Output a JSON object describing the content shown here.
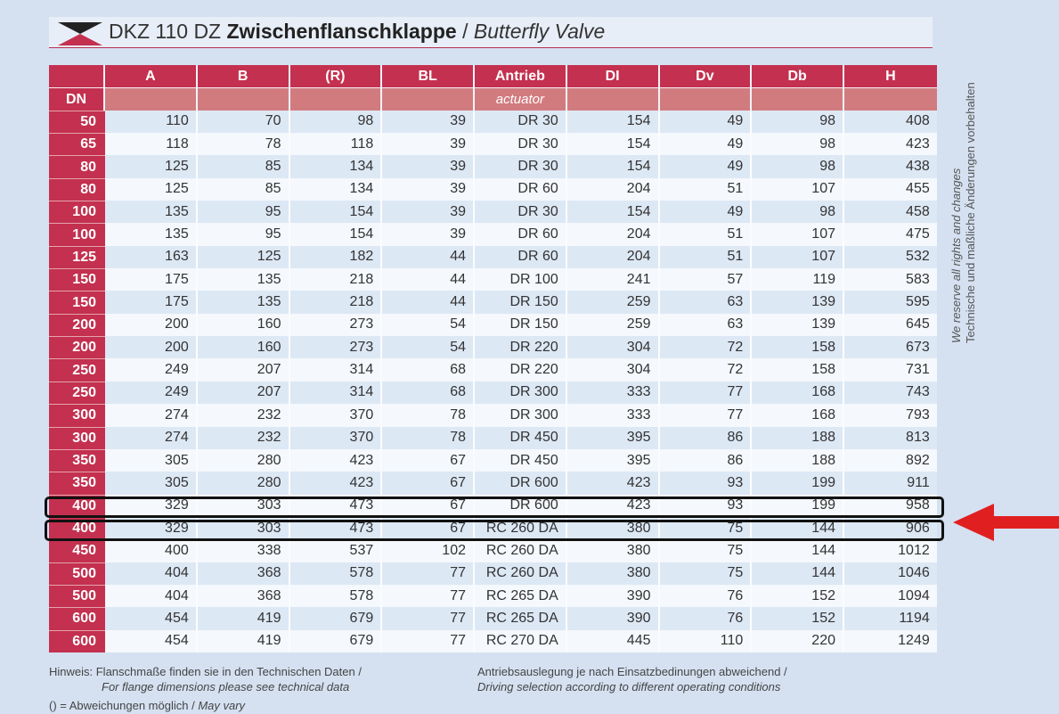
{
  "header": {
    "title_prefix": "DKZ 110 DZ",
    "title_bold": "Zwischenflanschklappe",
    "title_separator": " / ",
    "title_italic": "Butterfly Valve"
  },
  "table": {
    "columns": [
      "A",
      "B",
      "(R)",
      "BL",
      "Antrieb",
      "DI",
      "Dv",
      "Db",
      "H"
    ],
    "dn_label": "DN",
    "antrieb_sublabel": "actuator",
    "rows": [
      {
        "dn": "50",
        "values": [
          "110",
          "70",
          "98",
          "39",
          "DR 30",
          "154",
          "49",
          "98",
          "408"
        ]
      },
      {
        "dn": "65",
        "values": [
          "118",
          "78",
          "118",
          "39",
          "DR 30",
          "154",
          "49",
          "98",
          "423"
        ]
      },
      {
        "dn": "80",
        "values": [
          "125",
          "85",
          "134",
          "39",
          "DR 30",
          "154",
          "49",
          "98",
          "438"
        ]
      },
      {
        "dn": "80",
        "values": [
          "125",
          "85",
          "134",
          "39",
          "DR 60",
          "204",
          "51",
          "107",
          "455"
        ]
      },
      {
        "dn": "100",
        "values": [
          "135",
          "95",
          "154",
          "39",
          "DR 30",
          "154",
          "49",
          "98",
          "458"
        ]
      },
      {
        "dn": "100",
        "values": [
          "135",
          "95",
          "154",
          "39",
          "DR 60",
          "204",
          "51",
          "107",
          "475"
        ]
      },
      {
        "dn": "125",
        "values": [
          "163",
          "125",
          "182",
          "44",
          "DR 60",
          "204",
          "51",
          "107",
          "532"
        ]
      },
      {
        "dn": "150",
        "values": [
          "175",
          "135",
          "218",
          "44",
          "DR 100",
          "241",
          "57",
          "119",
          "583"
        ]
      },
      {
        "dn": "150",
        "values": [
          "175",
          "135",
          "218",
          "44",
          "DR 150",
          "259",
          "63",
          "139",
          "595"
        ]
      },
      {
        "dn": "200",
        "values": [
          "200",
          "160",
          "273",
          "54",
          "DR 150",
          "259",
          "63",
          "139",
          "645"
        ]
      },
      {
        "dn": "200",
        "values": [
          "200",
          "160",
          "273",
          "54",
          "DR 220",
          "304",
          "72",
          "158",
          "673"
        ]
      },
      {
        "dn": "250",
        "values": [
          "249",
          "207",
          "314",
          "68",
          "DR 220",
          "304",
          "72",
          "158",
          "731"
        ]
      },
      {
        "dn": "250",
        "values": [
          "249",
          "207",
          "314",
          "68",
          "DR 300",
          "333",
          "77",
          "168",
          "743"
        ]
      },
      {
        "dn": "300",
        "values": [
          "274",
          "232",
          "370",
          "78",
          "DR 300",
          "333",
          "77",
          "168",
          "793"
        ]
      },
      {
        "dn": "300",
        "values": [
          "274",
          "232",
          "370",
          "78",
          "DR 450",
          "395",
          "86",
          "188",
          "813"
        ]
      },
      {
        "dn": "350",
        "values": [
          "305",
          "280",
          "423",
          "67",
          "DR 450",
          "395",
          "86",
          "188",
          "892"
        ]
      },
      {
        "dn": "350",
        "values": [
          "305",
          "280",
          "423",
          "67",
          "DR 600",
          "423",
          "93",
          "199",
          "911"
        ]
      },
      {
        "dn": "400",
        "values": [
          "329",
          "303",
          "473",
          "67",
          "DR 600",
          "423",
          "93",
          "199",
          "958"
        ]
      },
      {
        "dn": "400",
        "values": [
          "329",
          "303",
          "473",
          "67",
          "RC 260 DA",
          "380",
          "75",
          "144",
          "906"
        ]
      },
      {
        "dn": "450",
        "values": [
          "400",
          "338",
          "537",
          "102",
          "RC 260 DA",
          "380",
          "75",
          "144",
          "1012"
        ]
      },
      {
        "dn": "500",
        "values": [
          "404",
          "368",
          "578",
          "77",
          "RC 260 DA",
          "380",
          "75",
          "144",
          "1046"
        ]
      },
      {
        "dn": "500",
        "values": [
          "404",
          "368",
          "578",
          "77",
          "RC 265 DA",
          "390",
          "76",
          "152",
          "1094"
        ]
      },
      {
        "dn": "600",
        "values": [
          "454",
          "419",
          "679",
          "77",
          "RC 265 DA",
          "390",
          "76",
          "152",
          "1194"
        ]
      },
      {
        "dn": "600",
        "values": [
          "454",
          "419",
          "679",
          "77",
          "RC 270 DA",
          "445",
          "110",
          "220",
          "1249"
        ]
      }
    ]
  },
  "side_text": {
    "line1": "We reserve all rights and changes",
    "line2": "Technische und maßliche Änderungen vorbehalten"
  },
  "notes": {
    "left_de": "Hinweis: Flanschmaße finden sie in den Technischen Daten /",
    "left_en": "For flange dimensions please see technical data",
    "right_de": "Antriebsauslegung je nach Einsatzbedinungen abweichend /",
    "right_en": "Driving selection according to different operating conditions",
    "bottom_de": "() = Abweichungen möglich /",
    "bottom_en": "May vary"
  },
  "colors": {
    "accent_red": "#c4304f",
    "subheader_pink": "#d27b7f",
    "page_background": "#d5e1f1",
    "annotation_arrow": "#e02020",
    "highlight_frame": "#111111"
  }
}
